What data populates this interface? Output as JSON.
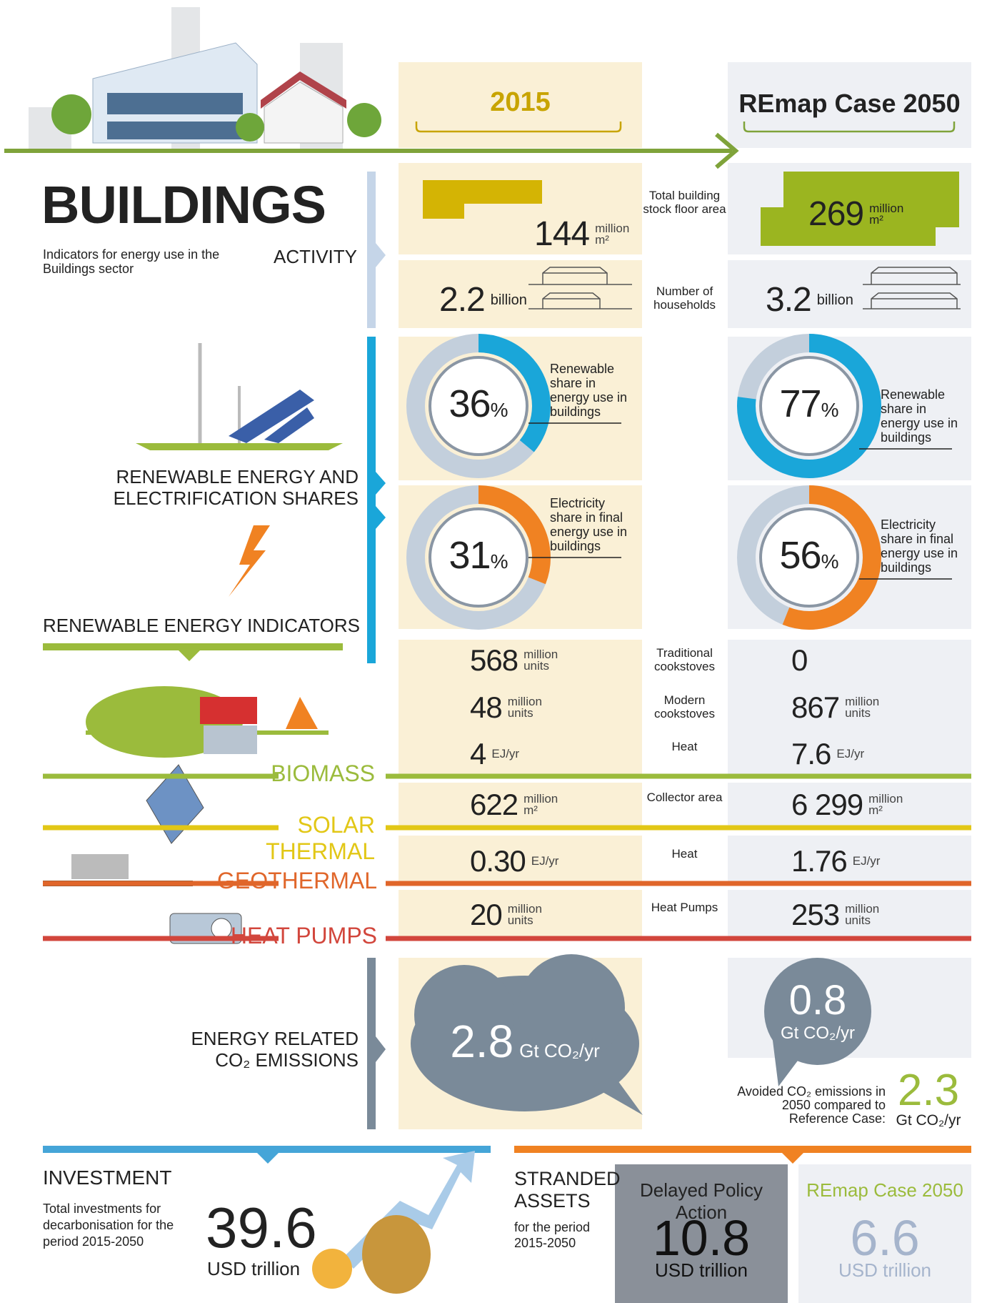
{
  "header": {
    "col_2015": "2015",
    "col_2050": "REmap Case 2050"
  },
  "title": "BUILDINGS",
  "subtitle": "Indicators for energy use in the Buildings sector",
  "activity": {
    "label": "ACTIVITY",
    "rows": [
      {
        "label": "Total building stock floor area",
        "v2015": "144",
        "v2050": "269",
        "unit": [
          "million",
          "m²"
        ]
      },
      {
        "label": "Number of households",
        "v2015": "2.2",
        "v2050": "3.2",
        "unit": [
          "billion"
        ]
      }
    ]
  },
  "shares": {
    "label": "RENEWABLE ENERGY AND ELECTRIFICATION SHARES",
    "unit": "%",
    "donuts": [
      {
        "label": "Renewable share in energy use in buildings",
        "v2015": 36,
        "v2050": 77,
        "color": "#1aa6d9"
      },
      {
        "label": "Electricity share in final energy use in buildings",
        "v2015": 31,
        "v2050": 56,
        "color": "#f08222"
      }
    ]
  },
  "indicators": {
    "label": "RENEWABLE ENERGY INDICATORS",
    "groups": [
      {
        "name": "BIOMASS",
        "color": "#9bbb3c",
        "rows": [
          {
            "label": "Traditional cookstoves",
            "v2015": "568",
            "u2015": [
              "million",
              "units"
            ],
            "v2050": "0"
          },
          {
            "label": "Modern cookstoves",
            "v2015": "48",
            "u2015": [
              "million",
              "units"
            ],
            "v2050": "867",
            "u2050": [
              "million",
              "units"
            ]
          },
          {
            "label": "Heat",
            "v2015": "4",
            "u2015": [
              "EJ/yr"
            ],
            "v2050": "7.6",
            "u2050": [
              "EJ/yr"
            ]
          }
        ]
      },
      {
        "name": "SOLAR THERMAL",
        "color": "#e2c716",
        "rows": [
          {
            "label": "Collector area",
            "v2015": "622",
            "u2015": [
              "million",
              "m²"
            ],
            "v2050": "6 299",
            "u2050": [
              "million",
              "m²"
            ]
          }
        ]
      },
      {
        "name": "GEOTHERMAL",
        "color": "#e0662a",
        "rows": [
          {
            "label": "Heat",
            "v2015": "0.30",
            "u2015": [
              "EJ/yr"
            ],
            "v2050": "1.76",
            "u2050": [
              "EJ/yr"
            ]
          }
        ]
      },
      {
        "name": "HEAT PUMPS",
        "color": "#d2463c",
        "rows": [
          {
            "label": "Heat Pumps",
            "v2015": "20",
            "u2015": [
              "million",
              "units"
            ],
            "v2050": "253",
            "u2050": [
              "million",
              "units"
            ]
          }
        ]
      }
    ]
  },
  "emissions": {
    "label": "ENERGY RELATED CO₂ EMISSIONS",
    "v2015": "2.8",
    "v2050": "0.8",
    "unit": "Gt CO₂/yr",
    "avoided_label": "Avoided CO₂ emissions in 2050 compared to Reference Case:",
    "avoided": "2.3"
  },
  "investment": {
    "label": "INVESTMENT",
    "description": "Total investments for decarbonisation for the period 2015-2050",
    "value": "39.6",
    "unit": "USD trillion"
  },
  "stranded": {
    "label": "STRANDED ASSETS",
    "description": "for the period 2015-2050",
    "cases": [
      {
        "name": "Delayed Policy Action",
        "value": "10.8",
        "unit": "USD trillion"
      },
      {
        "name": "REmap Case 2050",
        "value": "6.6",
        "unit": "USD trillion"
      }
    ]
  }
}
